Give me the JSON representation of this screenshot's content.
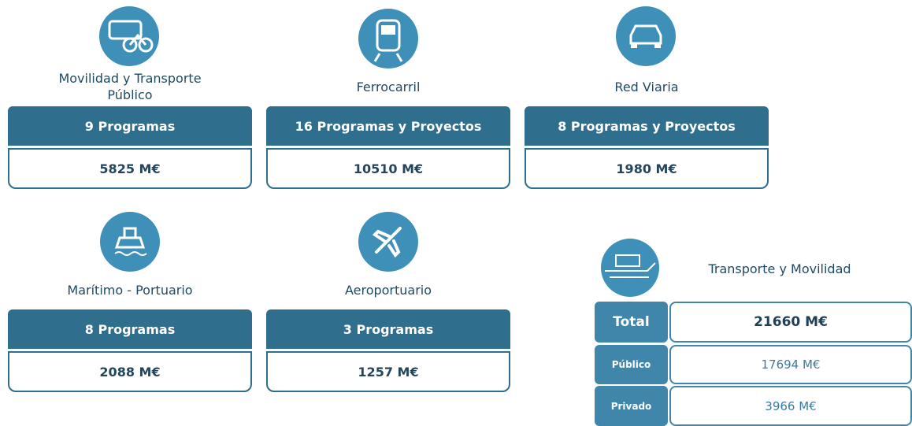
{
  "cards": [
    {
      "label": "Movilidad y Transporte Público",
      "programs": "9 Programas",
      "amount": "5825 M€"
    },
    {
      "label": "Ferrocarril",
      "programs": "16 Programas y Proyectos",
      "amount": "10510 M€"
    },
    {
      "label": "Red Viaria",
      "programs": "8 Programas y Proyectos",
      "amount": "1980 M€"
    },
    {
      "label": "Marítimo - Portuario",
      "programs": "8 Programas",
      "amount": "2088 M€"
    },
    {
      "label": "Aeroportuario",
      "programs": "3 Programas",
      "amount": "1257 M€"
    }
  ],
  "summary": {
    "title": "Transporte y Movilidad",
    "rows": [
      {
        "label": "Total",
        "amount": "21660 M€"
      },
      {
        "label": "Público",
        "amount": "17694 M€"
      },
      {
        "label": "Privado",
        "amount": "3966 M€"
      }
    ]
  }
}
